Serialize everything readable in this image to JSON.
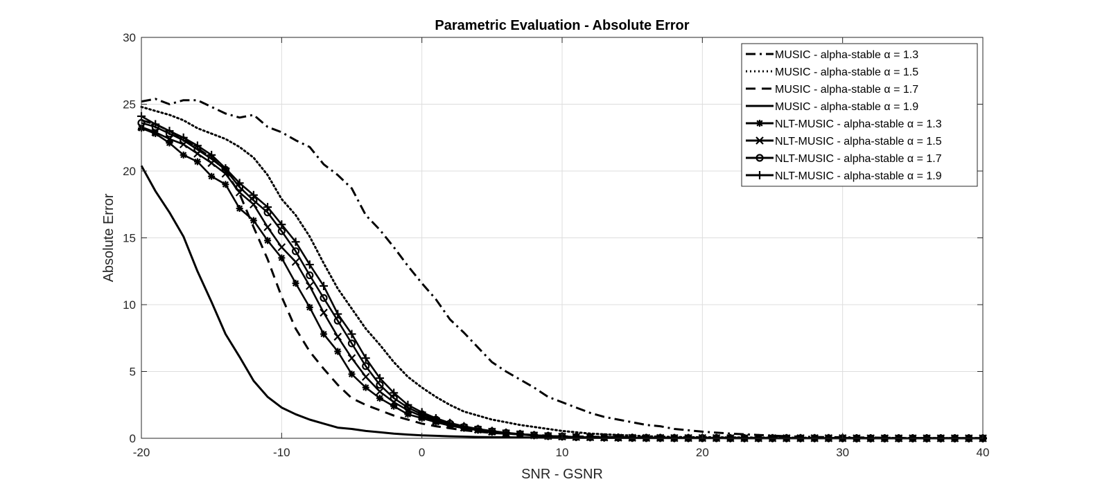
{
  "chart_data": {
    "type": "line",
    "title": "Parametric Evaluation - Absolute Error",
    "xlabel": "SNR - GSNR",
    "ylabel": "Absolute Error",
    "xlim": [
      -20,
      40
    ],
    "ylim": [
      0,
      30
    ],
    "xticks": [
      "-20",
      "-10",
      "0",
      "10",
      "20",
      "30",
      "40"
    ],
    "yticks": [
      "0",
      "5",
      "10",
      "15",
      "20",
      "25",
      "30"
    ],
    "grid": true,
    "legend_position": "top-right",
    "colors": {
      "line": "#000000",
      "grid": "#dddddd",
      "axis": "#262626"
    },
    "series": [
      {
        "name": "MUSIC - alpha-stable α = 1.3",
        "style": "dashdot",
        "marker": "none",
        "x": [
          -20,
          -19,
          -18,
          -17,
          -16,
          -15,
          -14,
          -13,
          -12,
          -11,
          -10,
          -9,
          -8,
          -7,
          -6,
          -5,
          -4,
          -3,
          -2,
          -1,
          0,
          1,
          2,
          3,
          4,
          5,
          6,
          7,
          8,
          9,
          10,
          11,
          12,
          13,
          14,
          15,
          16,
          17,
          18,
          19,
          20,
          22,
          24,
          26,
          28,
          30,
          32,
          34,
          36,
          38,
          40
        ],
        "y": [
          25.2,
          25.4,
          25.0,
          25.3,
          25.3,
          24.8,
          24.3,
          24.0,
          24.2,
          23.3,
          22.9,
          22.3,
          21.8,
          20.5,
          19.7,
          18.7,
          16.7,
          15.6,
          14.3,
          12.9,
          11.6,
          10.4,
          8.9,
          7.9,
          6.8,
          5.7,
          5.0,
          4.4,
          3.8,
          3.1,
          2.7,
          2.3,
          1.9,
          1.6,
          1.4,
          1.2,
          1.0,
          0.9,
          0.7,
          0.6,
          0.5,
          0.35,
          0.25,
          0.15,
          0.1,
          0.08,
          0.05,
          0.03,
          0.02,
          0.01,
          0.01
        ]
      },
      {
        "name": "MUSIC - alpha-stable α = 1.5",
        "style": "dotted",
        "marker": "none",
        "x": [
          -20,
          -19,
          -18,
          -17,
          -16,
          -15,
          -14,
          -13,
          -12,
          -11,
          -10,
          -9,
          -8,
          -7,
          -6,
          -5,
          -4,
          -3,
          -2,
          -1,
          0,
          1,
          2,
          3,
          4,
          5,
          6,
          7,
          8,
          9,
          10,
          11,
          12,
          13,
          14,
          15,
          16,
          18,
          20,
          25,
          30,
          35,
          40
        ],
        "y": [
          24.8,
          24.5,
          24.2,
          23.8,
          23.2,
          22.8,
          22.4,
          21.8,
          21.0,
          19.7,
          17.9,
          16.7,
          15.1,
          13.1,
          11.2,
          9.7,
          8.2,
          7.0,
          5.7,
          4.6,
          3.8,
          3.1,
          2.5,
          2.0,
          1.7,
          1.4,
          1.2,
          1.0,
          0.85,
          0.7,
          0.55,
          0.45,
          0.35,
          0.3,
          0.25,
          0.2,
          0.15,
          0.1,
          0.08,
          0.05,
          0.03,
          0.02,
          0.01
        ]
      },
      {
        "name": "MUSIC - alpha-stable α = 1.7",
        "style": "dashed",
        "marker": "none",
        "x": [
          -20,
          -19,
          -18,
          -17,
          -16,
          -15,
          -14,
          -13,
          -12,
          -11,
          -10,
          -9,
          -8,
          -7,
          -6,
          -5,
          -4,
          -3,
          -2,
          -1,
          0,
          1,
          2,
          3,
          4,
          5,
          6,
          7,
          8,
          10,
          15,
          20,
          30,
          40
        ],
        "y": [
          23.8,
          23.5,
          23.0,
          22.4,
          21.7,
          21.0,
          20.0,
          18.3,
          15.8,
          13.4,
          10.6,
          8.2,
          6.5,
          5.2,
          4.0,
          3.0,
          2.5,
          2.1,
          1.7,
          1.4,
          1.1,
          0.9,
          0.75,
          0.6,
          0.5,
          0.4,
          0.35,
          0.3,
          0.25,
          0.15,
          0.08,
          0.04,
          0.02,
          0.01
        ]
      },
      {
        "name": "MUSIC - alpha-stable α = 1.9",
        "style": "solid",
        "marker": "none",
        "x": [
          -20,
          -19,
          -18,
          -17,
          -16,
          -15,
          -14,
          -13,
          -12,
          -11,
          -10,
          -9,
          -8,
          -7,
          -6,
          -5,
          -4,
          -3,
          -2,
          -1,
          0,
          2,
          4,
          6,
          8,
          10,
          15,
          20,
          30,
          40
        ],
        "y": [
          20.4,
          18.5,
          16.9,
          15.1,
          12.5,
          10.2,
          7.8,
          6.1,
          4.3,
          3.1,
          2.3,
          1.8,
          1.4,
          1.1,
          0.8,
          0.7,
          0.55,
          0.45,
          0.35,
          0.28,
          0.22,
          0.15,
          0.1,
          0.07,
          0.05,
          0.03,
          0.02,
          0.01,
          0.01,
          0.0
        ]
      },
      {
        "name": "NLT-MUSIC - alpha-stable α = 1.3",
        "style": "solid",
        "marker": "star",
        "x": [
          -20,
          -19,
          -18,
          -17,
          -16,
          -15,
          -14,
          -13,
          -12,
          -11,
          -10,
          -9,
          -8,
          -7,
          -6,
          -5,
          -4,
          -3,
          -2,
          -1,
          0,
          1,
          2,
          3,
          4,
          5,
          6,
          7,
          8,
          9,
          10,
          11,
          12,
          13,
          14,
          15,
          16,
          17,
          18,
          19,
          20,
          21,
          22,
          23,
          24,
          25,
          26,
          27,
          28,
          29,
          30,
          31,
          32,
          33,
          34,
          35,
          36,
          37,
          38,
          39,
          40
        ],
        "y": [
          23.2,
          22.8,
          22.1,
          21.2,
          20.7,
          19.6,
          19.0,
          17.2,
          16.3,
          14.8,
          13.5,
          11.6,
          9.8,
          7.8,
          6.5,
          4.8,
          3.8,
          3.0,
          2.4,
          1.8,
          1.5,
          1.2,
          0.95,
          0.75,
          0.6,
          0.45,
          0.35,
          0.28,
          0.2,
          0.15,
          0.12,
          0.1,
          0.08,
          0.06,
          0.05,
          0.04,
          0.03,
          0.03,
          0.02,
          0.02,
          0.02,
          0.02,
          0.01,
          0.01,
          0.01,
          0.01,
          0.01,
          0.01,
          0.01,
          0.01,
          0.01,
          0.0,
          0.0,
          0.0,
          0.0,
          0.0,
          0.0,
          0.0,
          0.0,
          0.0,
          0.0
        ]
      },
      {
        "name": "NLT-MUSIC - alpha-stable α = 1.5",
        "style": "solid",
        "marker": "x",
        "x": [
          -20,
          -19,
          -18,
          -17,
          -16,
          -15,
          -14,
          -13,
          -12,
          -11,
          -10,
          -9,
          -8,
          -7,
          -6,
          -5,
          -4,
          -3,
          -2,
          -1,
          0,
          1,
          2,
          3,
          4,
          5,
          6,
          7,
          8,
          9,
          10,
          11,
          12,
          13,
          14,
          15,
          16,
          17,
          18,
          19,
          20,
          21,
          22,
          23,
          24,
          25,
          26,
          27,
          28,
          29,
          30,
          31,
          32,
          33,
          34,
          35,
          36,
          37,
          38,
          39,
          40
        ],
        "y": [
          23.3,
          22.9,
          22.4,
          22.0,
          21.3,
          20.6,
          19.8,
          18.4,
          17.5,
          15.8,
          14.3,
          13.2,
          11.4,
          9.4,
          7.6,
          6.0,
          4.6,
          3.5,
          2.7,
          2.1,
          1.65,
          1.3,
          1.0,
          0.8,
          0.65,
          0.5,
          0.38,
          0.3,
          0.22,
          0.17,
          0.13,
          0.1,
          0.08,
          0.06,
          0.05,
          0.04,
          0.03,
          0.03,
          0.02,
          0.02,
          0.02,
          0.02,
          0.01,
          0.01,
          0.01,
          0.01,
          0.01,
          0.01,
          0.01,
          0.01,
          0.01,
          0.0,
          0.0,
          0.0,
          0.0,
          0.0,
          0.0,
          0.0,
          0.0,
          0.0,
          0.0
        ]
      },
      {
        "name": "NLT-MUSIC - alpha-stable α = 1.7",
        "style": "solid",
        "marker": "circle",
        "x": [
          -20,
          -19,
          -18,
          -17,
          -16,
          -15,
          -14,
          -13,
          -12,
          -11,
          -10,
          -9,
          -8,
          -7,
          -6,
          -5,
          -4,
          -3,
          -2,
          -1,
          0,
          1,
          2,
          3,
          4,
          5,
          6,
          7,
          8,
          9,
          10,
          11,
          12,
          13,
          14,
          15,
          16,
          17,
          18,
          19,
          20,
          21,
          22,
          23,
          24,
          25,
          26,
          27,
          28,
          29,
          30,
          31,
          32,
          33,
          34,
          35,
          36,
          37,
          38,
          39,
          40
        ],
        "y": [
          23.6,
          23.3,
          22.8,
          22.3,
          21.6,
          20.9,
          20.1,
          18.8,
          17.8,
          16.9,
          15.5,
          14.0,
          12.2,
          10.5,
          8.8,
          7.1,
          5.4,
          4.0,
          3.0,
          2.3,
          1.8,
          1.4,
          1.1,
          0.85,
          0.68,
          0.52,
          0.4,
          0.31,
          0.23,
          0.18,
          0.14,
          0.1,
          0.08,
          0.06,
          0.05,
          0.04,
          0.03,
          0.03,
          0.02,
          0.02,
          0.02,
          0.02,
          0.01,
          0.01,
          0.01,
          0.01,
          0.01,
          0.01,
          0.01,
          0.01,
          0.01,
          0.0,
          0.0,
          0.0,
          0.0,
          0.0,
          0.0,
          0.0,
          0.0,
          0.0,
          0.0
        ]
      },
      {
        "name": "NLT-MUSIC - alpha-stable α = 1.9",
        "style": "solid",
        "marker": "plus",
        "x": [
          -20,
          -19,
          -18,
          -17,
          -16,
          -15,
          -14,
          -13,
          -12,
          -11,
          -10,
          -9,
          -8,
          -7,
          -6,
          -5,
          -4,
          -3,
          -2,
          -1,
          0,
          1,
          2,
          3,
          4,
          5,
          6,
          7,
          8,
          9,
          10,
          11,
          12,
          13,
          14,
          15,
          16,
          17,
          18,
          19,
          20,
          21,
          22,
          23,
          24,
          25,
          26,
          27,
          28,
          29,
          30,
          31,
          32,
          33,
          34,
          35,
          36,
          37,
          38,
          39,
          40
        ],
        "y": [
          24.1,
          23.5,
          23.0,
          22.5,
          21.9,
          21.2,
          20.2,
          19.1,
          18.2,
          17.3,
          16.0,
          14.7,
          13.0,
          11.4,
          9.3,
          7.8,
          6.0,
          4.5,
          3.4,
          2.5,
          1.95,
          1.5,
          1.15,
          0.9,
          0.7,
          0.55,
          0.42,
          0.32,
          0.24,
          0.18,
          0.14,
          0.1,
          0.08,
          0.06,
          0.05,
          0.04,
          0.03,
          0.03,
          0.02,
          0.02,
          0.02,
          0.02,
          0.01,
          0.01,
          0.01,
          0.01,
          0.01,
          0.01,
          0.01,
          0.01,
          0.01,
          0.0,
          0.0,
          0.0,
          0.0,
          0.0,
          0.0,
          0.0,
          0.0,
          0.0,
          0.0
        ]
      }
    ]
  }
}
